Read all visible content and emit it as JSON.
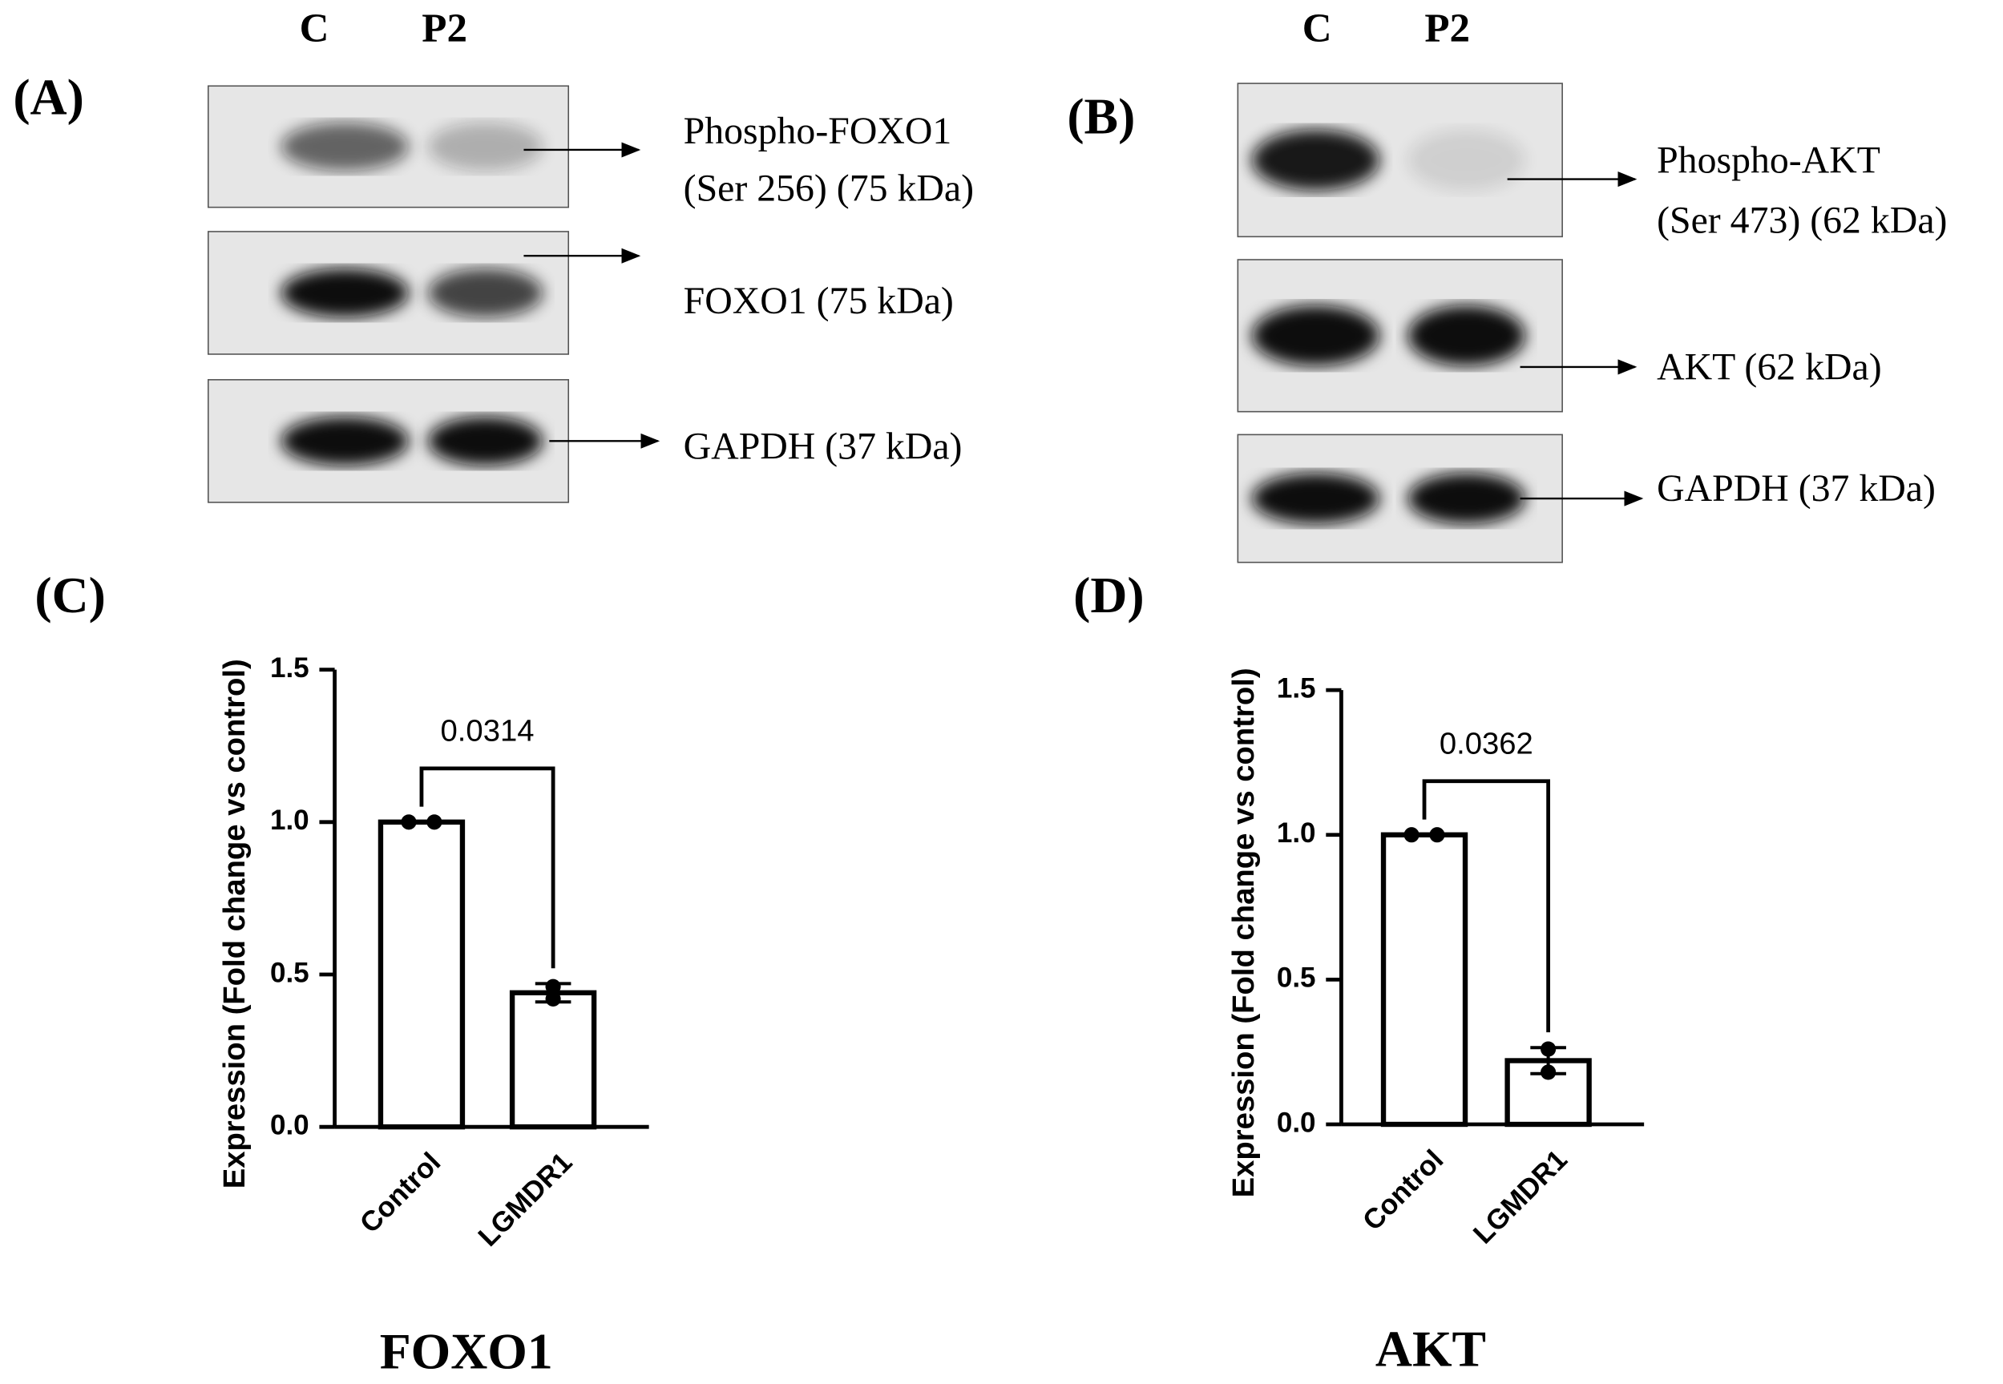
{
  "blots": [
    {
      "panel": "(A)",
      "lanes": [
        "C",
        "P2"
      ],
      "bands": [
        [
          "Phospho-FOXO1",
          "(Ser 256) (75 kDa)"
        ],
        [
          "FOXO1 (75 kDa)"
        ],
        [
          "GAPDH (37 kDa)"
        ]
      ]
    },
    {
      "panel": "(B)",
      "lanes": [
        "C",
        "P2"
      ],
      "bands": [
        [
          "Phospho-AKT",
          "(Ser 473) (62 kDa)"
        ],
        [
          "AKT (62 kDa)"
        ],
        [
          "GAPDH (37 kDa)"
        ]
      ]
    }
  ],
  "chart_data": [
    {
      "type": "bar",
      "panel": "(C)",
      "title": "FOXO1",
      "y_label": "Expression (Fold change vs control)",
      "categories": [
        "Control",
        "LGMDR1"
      ],
      "values": [
        1.0,
        0.44
      ],
      "errors": [
        0,
        0.03
      ],
      "points": [
        [
          1.0,
          1.0
        ],
        [
          0.42,
          0.46
        ]
      ],
      "annotation": "0.0314",
      "color": "#ffffff",
      "ylim": [
        0,
        1.5
      ],
      "yticks": [
        {
          "value": 0,
          "label": "0.0"
        },
        0.5,
        {
          "value": 1,
          "label": "1.0"
        },
        1.5
      ]
    },
    {
      "type": "bar",
      "panel": "(D)",
      "title": "AKT",
      "y_label": "Expression (Fold change vs control)",
      "categories": [
        "Control",
        "LGMDR1"
      ],
      "values": [
        1.0,
        0.22
      ],
      "errors": [
        0,
        0.045
      ],
      "points": [
        [
          1.0,
          1.0
        ],
        [
          0.26,
          0.18
        ]
      ],
      "annotation": "0.0362",
      "color": "#ffffff",
      "ylim": [
        0,
        1.5
      ],
      "yticks": [
        {
          "value": 0,
          "label": "0.0"
        },
        0.5,
        {
          "value": 1,
          "label": "1.0"
        },
        1.5
      ]
    }
  ]
}
